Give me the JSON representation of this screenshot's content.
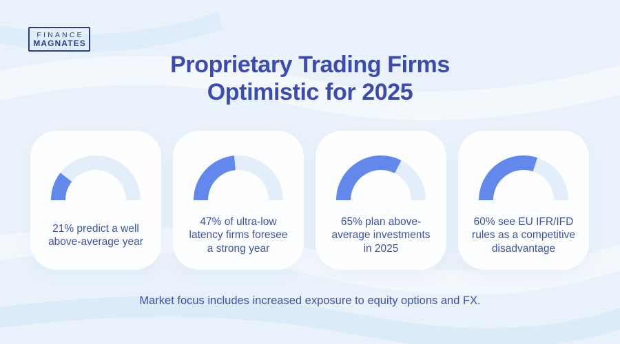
{
  "theme": {
    "background": "#E9F2FA",
    "card_background": "#FDFEFF",
    "gauge_track": "#E3EEFA",
    "gauge_fill": "#6288EC",
    "title_color": "#3B4BB3",
    "text_color": "#3E50AE",
    "logo_color": "#2D3C8F"
  },
  "logo": {
    "line1": "FINANCE",
    "line2": "MAGNATES"
  },
  "header": {
    "title_lines": [
      "Proprietary Trading Firms",
      "Optimistic for 2025"
    ]
  },
  "chart_data": {
    "type": "gauge",
    "subtype": "semicircle-donut",
    "unit": "%",
    "gauge_range": [
      0,
      100
    ],
    "title": "Proprietary Trading Firms Optimistic for 2025",
    "gauges": [
      {
        "value": 21,
        "label": "21% predict a well above-average year",
        "label_lines": [
          "21% predict a well",
          "above-average year"
        ]
      },
      {
        "value": 47,
        "label": "47% of ultra-low latency firms foresee a strong year",
        "label_lines": [
          "47% of ultra-low",
          "latency firms foresee",
          "a strong year"
        ]
      },
      {
        "value": 65,
        "label": "65% plan above-average investments in 2025",
        "label_lines": [
          "65% plan above-",
          "average investments",
          "in 2025"
        ]
      },
      {
        "value": 60,
        "label": "60% see EU IFR/IFD rules as a competitive disadvantage",
        "label_lines": [
          "60% see EU IFR/IFD",
          "rules as a competitive",
          "disadvantage"
        ]
      }
    ],
    "footnote": "Market focus includes increased exposure to equity options and FX."
  },
  "footer": {
    "text": "Market focus includes increased exposure to equity options and FX."
  }
}
